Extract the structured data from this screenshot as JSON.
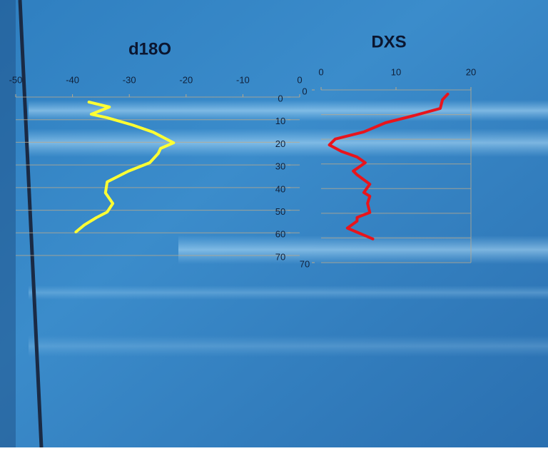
{
  "chart_data": [
    {
      "type": "line",
      "title": "d18O",
      "values": [
        -37.1,
        -33.5,
        -36.7,
        -33.9,
        -29.5,
        -25.8,
        -22.2,
        -24.5,
        -24.9,
        -26.4,
        -30.2,
        -33.9,
        -34.2,
        -32.9,
        -33.9,
        -35.8,
        -37.9,
        -39.4
      ],
      "depth": [
        2.2,
        4.4,
        7.6,
        9.1,
        12.3,
        15.5,
        20.2,
        22.7,
        24.9,
        29,
        32.8,
        37.5,
        42.3,
        47,
        50.8,
        53.3,
        56.5,
        59.6
      ],
      "color": "#ffff33",
      "xlim": [
        -50,
        0
      ],
      "xticks": [
        -50,
        -40,
        -30,
        -20,
        -10,
        0
      ],
      "ylim": [
        0,
        70
      ],
      "yticks": [
        0,
        10,
        20,
        30,
        40,
        50,
        60,
        70
      ],
      "y_inverted": true,
      "ygrid": [
        0,
        10,
        20,
        30,
        40,
        50,
        60,
        70
      ]
    },
    {
      "type": "line",
      "title": "DXS",
      "values": [
        16.9,
        16.2,
        15.9,
        12.4,
        8.6,
        5.7,
        1.9,
        1.1,
        2.7,
        4.8,
        5.9,
        4.3,
        4.8,
        6.5,
        5.7,
        6.5,
        6.2,
        6.5,
        4.8,
        4.8,
        3.5,
        6.9
      ],
      "depth": [
        1.7,
        4,
        7.5,
        10.4,
        13.3,
        17,
        19.9,
        22.3,
        24.9,
        27.2,
        29.5,
        32.9,
        34.4,
        38.2,
        41.6,
        43.1,
        46,
        49.7,
        51.7,
        53.2,
        56,
        60.4
      ],
      "color": "#e8141c",
      "xlim": [
        0,
        20
      ],
      "xticks": [
        0,
        10,
        20
      ],
      "ylim": [
        0,
        70
      ],
      "yticks": [
        0,
        70
      ],
      "y_inverted": true,
      "ygrid": [
        0,
        10,
        20,
        30,
        40,
        50,
        60,
        70
      ]
    }
  ]
}
